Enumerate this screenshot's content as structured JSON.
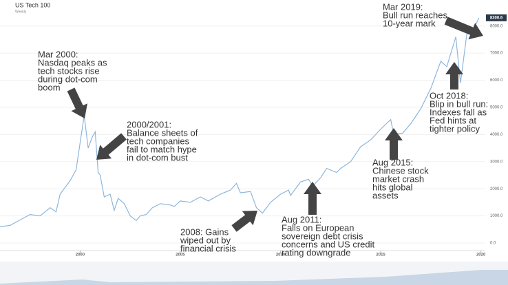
{
  "chart_data": {
    "type": "line",
    "title": "US Tech 100",
    "subtitle": "Weekly",
    "current_value": 8300.6,
    "x": [
      1996.0,
      1996.5,
      1997.0,
      1997.5,
      1998.0,
      1998.5,
      1998.8,
      1999.0,
      1999.5,
      1999.8,
      2000.0,
      2000.2,
      2000.4,
      2000.6,
      2000.75,
      2000.9,
      2001.0,
      2001.2,
      2001.5,
      2001.7,
      2001.9,
      2002.2,
      2002.5,
      2002.8,
      2003.0,
      2003.3,
      2003.6,
      2004.0,
      2004.5,
      2004.7,
      2005.0,
      2005.5,
      2006.0,
      2006.4,
      2007.0,
      2007.5,
      2007.8,
      2008.0,
      2008.5,
      2008.8,
      2009.1,
      2009.5,
      2010.0,
      2010.4,
      2010.5,
      2011.0,
      2011.4,
      2011.6,
      2012.0,
      2012.3,
      2012.8,
      2013.0,
      2013.5,
      2014.0,
      2014.5,
      2015.0,
      2015.5,
      2015.65,
      2016.1,
      2016.5,
      2017.0,
      2017.5,
      2018.0,
      2018.3,
      2018.75,
      2018.98,
      2019.3,
      2019.6,
      2019.9
    ],
    "series": [
      {
        "name": "US Tech 100",
        "color": "#8cb6dc",
        "values": [
          600,
          650,
          850,
          1050,
          1000,
          1300,
          1150,
          1800,
          2300,
          2700,
          3700,
          4700,
          3500,
          3900,
          4100,
          2600,
          2500,
          1700,
          1800,
          1200,
          1650,
          1450,
          1000,
          830,
          1000,
          1050,
          1300,
          1450,
          1400,
          1350,
          1550,
          1500,
          1700,
          1550,
          1800,
          1950,
          2200,
          1850,
          1900,
          1300,
          1100,
          1500,
          1800,
          1950,
          1750,
          2250,
          2350,
          2100,
          2400,
          2750,
          2600,
          2750,
          3000,
          3550,
          3800,
          4200,
          4550,
          4000,
          4050,
          4400,
          4950,
          5700,
          6700,
          6500,
          7600,
          5900,
          7700,
          7800,
          8300
        ]
      }
    ],
    "xlim": [
      1996.0,
      2020.7
    ],
    "xticks": [
      2000,
      2005,
      2010,
      2015,
      2020
    ],
    "ylim": [
      0,
      8500
    ],
    "yticks": [
      {
        "value": 0,
        "label": "0.0"
      },
      {
        "value": 1000,
        "label": "1000.0"
      },
      {
        "value": 2000,
        "label": "2000.0"
      },
      {
        "value": 3000,
        "label": "3000.0"
      },
      {
        "value": 4000,
        "label": "4000.0"
      },
      {
        "value": 5000,
        "label": "5000.0"
      },
      {
        "value": 6000,
        "label": "6000.0"
      },
      {
        "value": 7000,
        "label": "7000.0"
      },
      {
        "value": 8000,
        "label": "8000.0"
      }
    ],
    "grid": true,
    "annotations": [
      {
        "lines": [
          "Mar 2000:",
          "Nasdaq peaks as",
          "tech stocks rise",
          "during dot-com",
          "boom"
        ]
      },
      {
        "lines": [
          "2000/2001:",
          "Balance sheets of",
          "tech companies",
          "fail to match hype",
          "in dot-com bust"
        ]
      },
      {
        "lines": [
          "2008: Gains",
          "wiped out by",
          "financial crisis"
        ]
      },
      {
        "lines": [
          "Aug 2011:",
          "Falls on European",
          "sovereign debt crisis",
          "concerns and US credit",
          "rating downgrade"
        ]
      },
      {
        "lines": [
          "Aug 2015:",
          "Chinese stock",
          "market crash",
          "hits global",
          "assets"
        ]
      },
      {
        "lines": [
          "Oct 2018:",
          "Blip in bull run:",
          "Indexes fall as",
          "Fed hints at",
          "tighter policy"
        ]
      },
      {
        "lines": [
          "Mar 2019:",
          "Bull run reaches",
          "10-year mark"
        ]
      }
    ]
  }
}
